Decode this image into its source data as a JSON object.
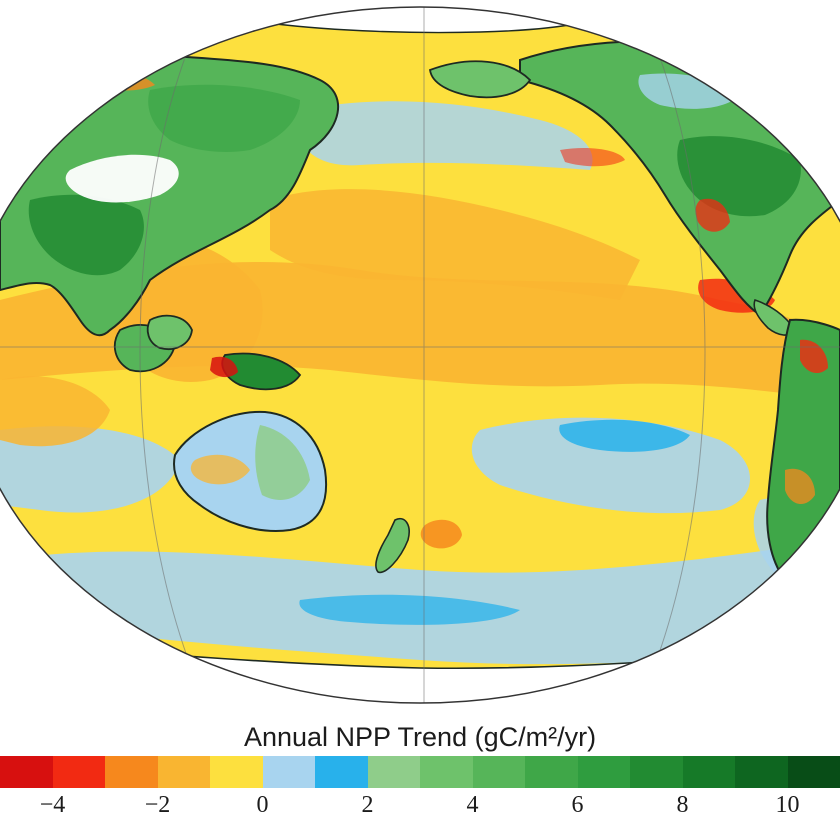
{
  "legend": {
    "title": "Annual NPP Trend (gC/m²/yr)",
    "min": -5.0,
    "max": 11.0,
    "bins": [
      {
        "color": "#d7100f"
      },
      {
        "color": "#f22a12"
      },
      {
        "color": "#f6881d"
      },
      {
        "color": "#f9b531"
      },
      {
        "color": "#fde03e"
      },
      {
        "color": "#a8d4ef"
      },
      {
        "color": "#28b1eb"
      },
      {
        "color": "#8fcd8a"
      },
      {
        "color": "#6ec26b"
      },
      {
        "color": "#56b559"
      },
      {
        "color": "#3fa748"
      },
      {
        "color": "#2f9d3f"
      },
      {
        "color": "#228b32"
      },
      {
        "color": "#167a28"
      },
      {
        "color": "#0e6620"
      },
      {
        "color": "#084d17"
      }
    ],
    "ticks": [
      {
        "value": -4,
        "label": "−4"
      },
      {
        "value": -2,
        "label": "−2"
      },
      {
        "value": 0,
        "label": "0"
      },
      {
        "value": 2,
        "label": "2"
      },
      {
        "value": 4,
        "label": "4"
      },
      {
        "value": 6,
        "label": "6"
      },
      {
        "value": 8,
        "label": "8"
      },
      {
        "value": 10,
        "label": "10"
      }
    ]
  },
  "map": {
    "projection": "ellipse",
    "colors": {
      "ocean_base": "#fde03e",
      "ice": "#ffffff",
      "coast": "#1e2a22",
      "graticule": "#6b6b6b"
    }
  }
}
